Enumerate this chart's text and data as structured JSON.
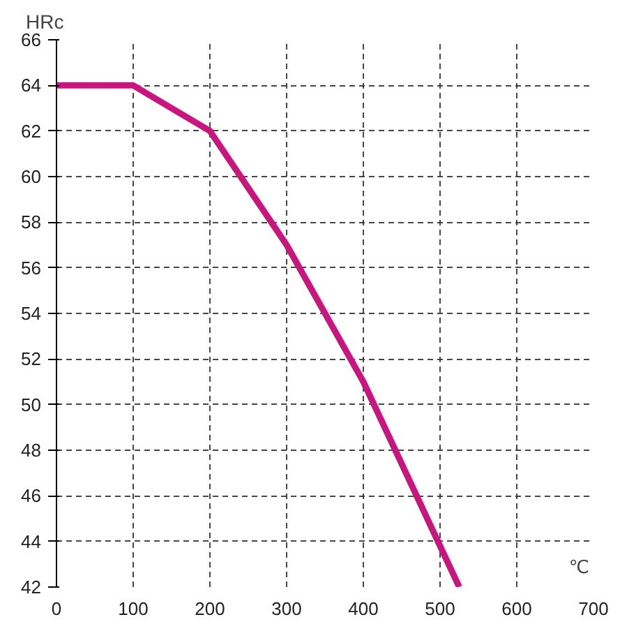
{
  "chart_data": {
    "type": "line",
    "xlabel": "℃",
    "ylabel": "HRc",
    "series": [
      {
        "color": "#c8167f",
        "x": [
          0,
          100,
          200,
          300,
          400,
          525
        ],
        "values": [
          64,
          64,
          62,
          57,
          51,
          42
        ]
      }
    ],
    "xlim": [
      0,
      700
    ],
    "ylim": [
      42,
      66
    ],
    "xticks": [
      0,
      100,
      200,
      300,
      400,
      500,
      600,
      700
    ],
    "yticks": [
      42,
      44,
      46,
      48,
      50,
      52,
      54,
      56,
      58,
      60,
      62,
      64,
      66
    ],
    "grid": true,
    "line_style": "solid",
    "marker": "none"
  }
}
